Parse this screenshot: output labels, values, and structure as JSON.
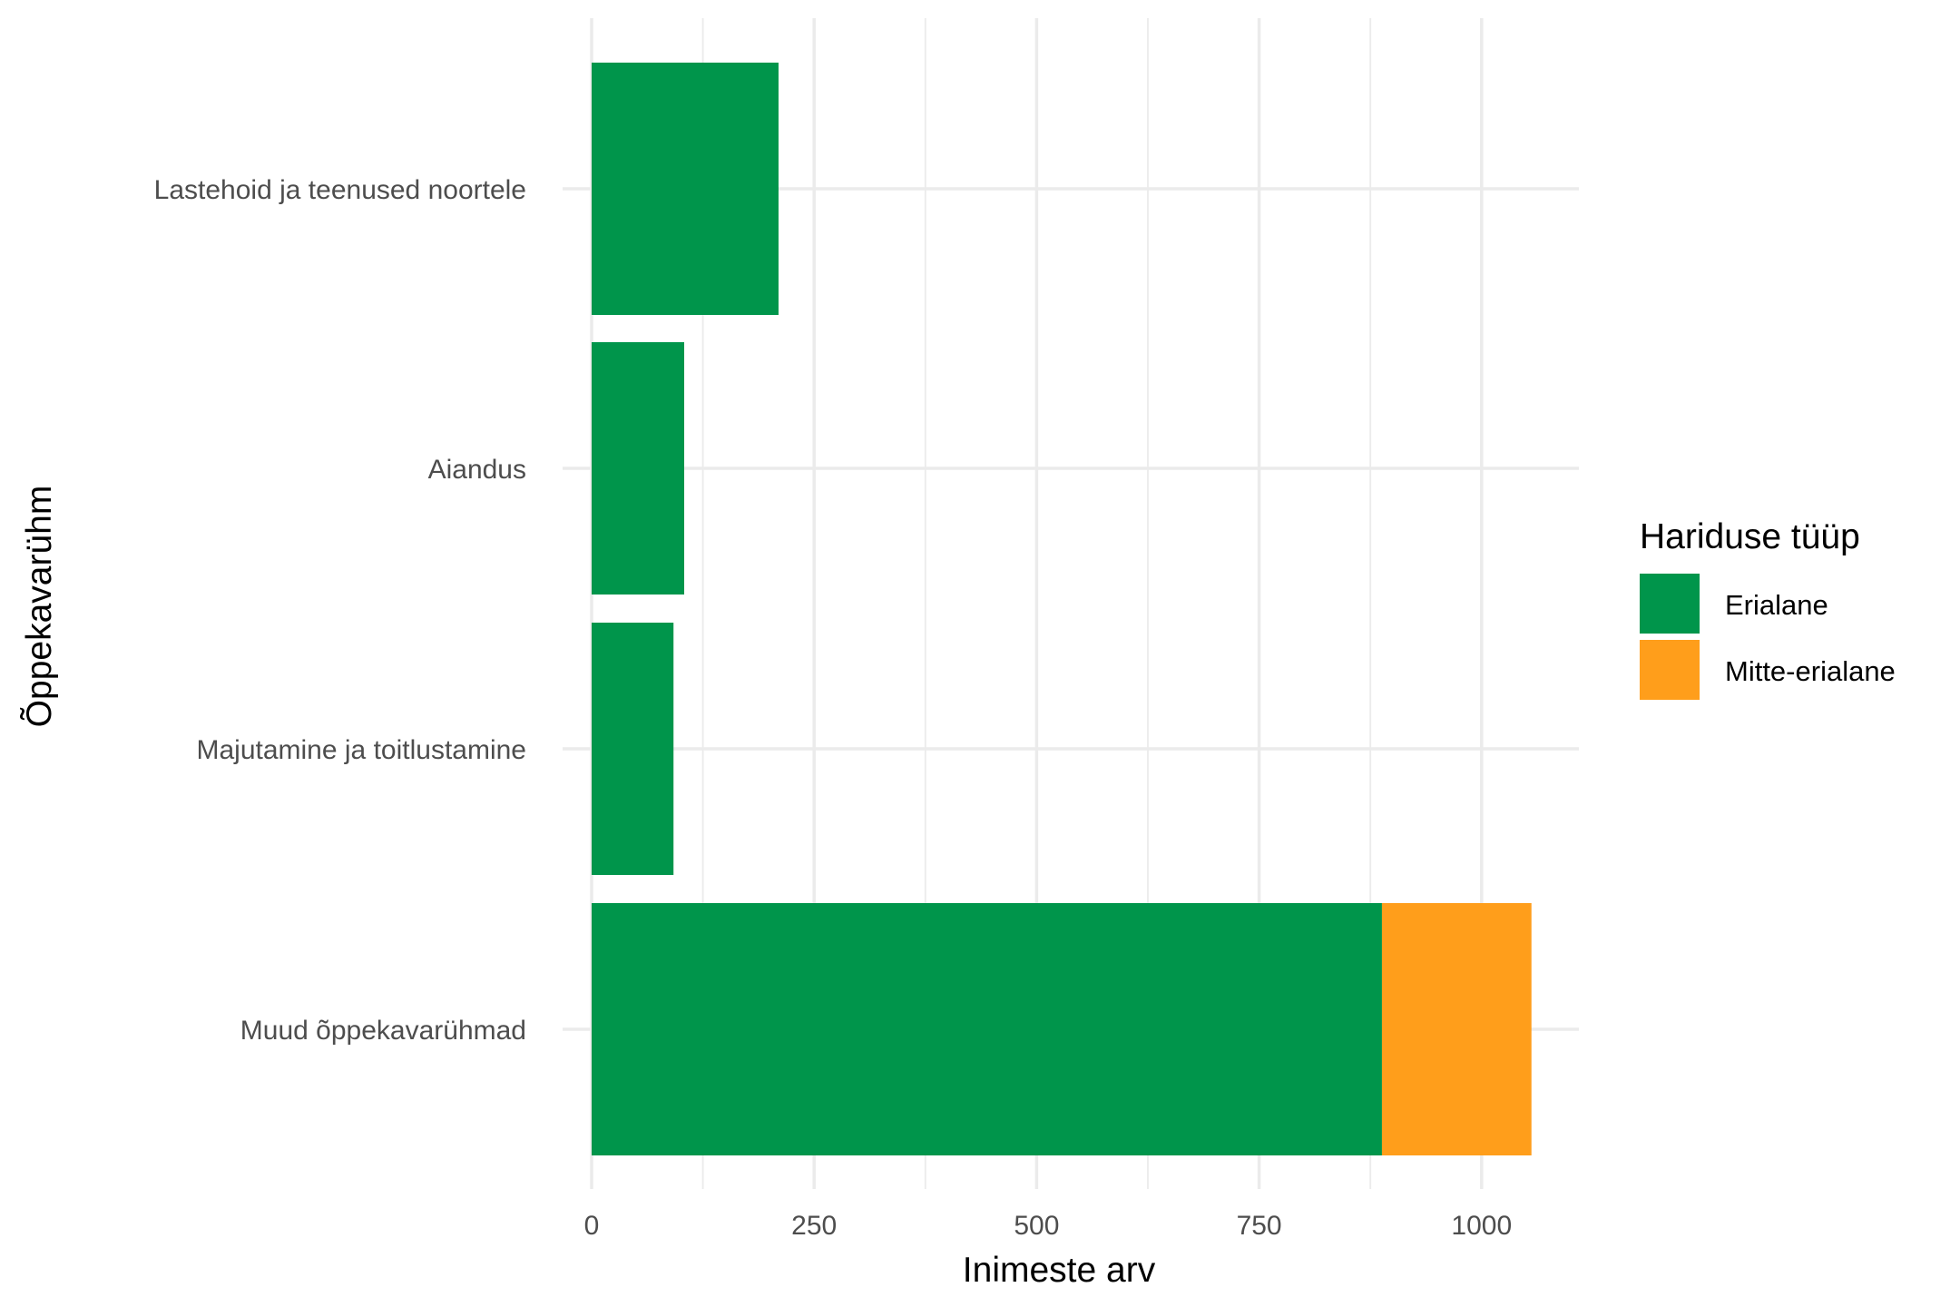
{
  "chart_data": {
    "type": "bar",
    "orientation": "horizontal",
    "stacked": true,
    "categories": [
      "Lastehoid ja teenused noortele",
      "Aiandus",
      "Majutamine ja toitlustamine",
      "Muud õppekavarühmad"
    ],
    "series": [
      {
        "name": "Erialane",
        "color": "#00954b",
        "values": [
          210,
          104,
          92,
          888
        ]
      },
      {
        "name": "Mitte-erialane",
        "color": "#ff9e1b",
        "values": [
          0,
          0,
          0,
          168
        ]
      }
    ],
    "xlabel": "Inimeste arv",
    "ylabel": "Õppekavarühm",
    "xlim": [
      0,
      1100
    ],
    "xticks": [
      0,
      250,
      500,
      750,
      1000
    ],
    "xtick_labels": [
      "0",
      "250",
      "500",
      "750",
      "1000"
    ],
    "grid": true,
    "legend": {
      "title": "Hariduse tüüp",
      "position": "right",
      "entries": [
        "Erialane",
        "Mitte-erialane"
      ]
    }
  }
}
